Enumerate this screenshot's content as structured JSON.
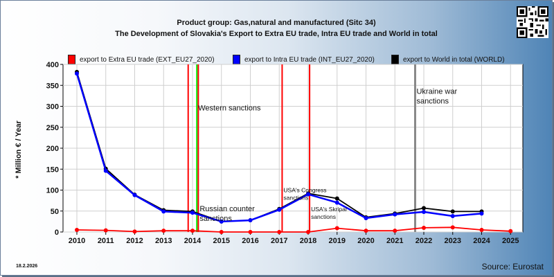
{
  "header": {
    "title_line1": "Product group: Gas,natural and manufactured (Sitc 34)",
    "title_line2": "The Development of Slovakia's Export to Extra EU trade, Intra EU trade and World in total"
  },
  "footer": {
    "date": "18.2.2026",
    "source": "Source: Eurostat"
  },
  "chart_data": {
    "type": "line",
    "title": "The Development of Slovakia's Export to Extra EU trade, Intra EU trade and World in total",
    "ylabel": "* Million € / Year",
    "xlabel": "",
    "ylim": [
      0,
      400
    ],
    "yticks": [
      0,
      50,
      100,
      150,
      200,
      250,
      300,
      350,
      400
    ],
    "categories": [
      "2010",
      "2011",
      "2012",
      "2013",
      "2014",
      "2015",
      "2016",
      "2017",
      "2018",
      "2019",
      "2020",
      "2021",
      "2022",
      "2023",
      "2024",
      "2025"
    ],
    "grid": true,
    "legend_position": "top",
    "series": [
      {
        "name": "export to Extra EU trade (EXT_EU27_2020)",
        "color": "#ff0000",
        "values": [
          5,
          4,
          1,
          3,
          3,
          0,
          0,
          0,
          0,
          9,
          3,
          3,
          10,
          11,
          5,
          2
        ]
      },
      {
        "name": "export to Intra EU trade (INT_EU27_2020)",
        "color": "#0000ff",
        "values": [
          378,
          146,
          88,
          49,
          46,
          25,
          28,
          53,
          90,
          70,
          33,
          42,
          48,
          38,
          44,
          null
        ]
      },
      {
        "name": "export to World in total (WORLD)",
        "color": "#000000",
        "values": [
          382,
          151,
          89,
          52,
          49,
          25,
          28,
          55,
          92,
          80,
          35,
          44,
          57,
          49,
          49,
          null
        ]
      }
    ],
    "events": [
      {
        "x": 2013.85,
        "color": "#ff0000",
        "label": "",
        "label_y": null
      },
      {
        "x": 2014.15,
        "color": "#00ee00",
        "label": "Western sanctions",
        "label_y": 290
      },
      {
        "x": 2014.2,
        "color": "#ff0000",
        "label": "Russian counter sanctions",
        "label_y": 50
      },
      {
        "x": 2017.1,
        "color": "#ff0000",
        "label": "USA's Congress sanctions",
        "label_y": 95
      },
      {
        "x": 2018.05,
        "color": "#ff0000",
        "label": "USA's Skripal sanctions",
        "label_y": 50
      },
      {
        "x": 2021.7,
        "color": "#888888",
        "label": "Ukraine war sanctions",
        "label_y": 330
      }
    ]
  }
}
